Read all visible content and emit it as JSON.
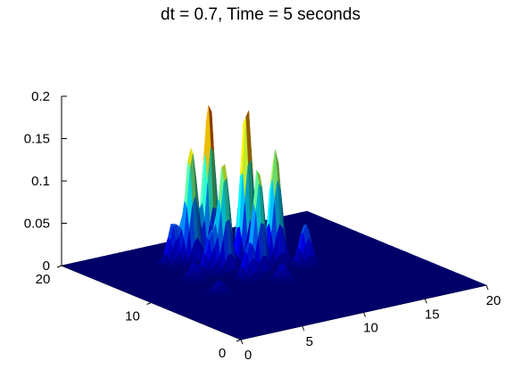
{
  "window": {
    "title": "dt = 0.7, Time = 5 seconds"
  },
  "chart_data": {
    "type": "surface",
    "title": "dt = 0.7, Time = 5 seconds",
    "xlabel": "",
    "ylabel": "",
    "zlabel": "",
    "xlim": [
      0,
      20
    ],
    "ylim": [
      0,
      20
    ],
    "zlim": [
      0,
      0.2
    ],
    "colormap": "jet",
    "grid": false,
    "x_ticks": [
      0,
      5,
      10,
      15,
      20
    ],
    "y_ticks": [
      0,
      10,
      20
    ],
    "z_ticks": [
      0,
      0.05,
      0.1,
      0.15,
      0.2
    ],
    "x_tick_labels": [
      "0",
      "5",
      "10",
      "15",
      "20"
    ],
    "y_tick_labels": [
      "0",
      "10",
      "20"
    ],
    "z_tick_labels": [
      "0",
      "0.05",
      "0.1",
      "0.15",
      "0.2"
    ],
    "peaks": [
      {
        "x": 8.6,
        "y": 15.3,
        "z": 0.19
      },
      {
        "x": 10.4,
        "y": 13.6,
        "z": 0.19
      },
      {
        "x": 7.2,
        "y": 15.4,
        "z": 0.14
      },
      {
        "x": 11.8,
        "y": 12.3,
        "z": 0.135
      },
      {
        "x": 7.9,
        "y": 12.7,
        "z": 0.13
      },
      {
        "x": 9.6,
        "y": 11.2,
        "z": 0.125
      },
      {
        "x": 6.1,
        "y": 15.9,
        "z": 0.05
      },
      {
        "x": 13.0,
        "y": 10.6,
        "z": 0.05
      },
      {
        "x": 6.9,
        "y": 12.9,
        "z": 0.045
      },
      {
        "x": 8.3,
        "y": 10.4,
        "z": 0.045
      },
      {
        "x": 5.3,
        "y": 12.4,
        "z": 0.02
      },
      {
        "x": 9.8,
        "y": 8.8,
        "z": 0.02
      },
      {
        "x": 12.2,
        "y": 15.6,
        "z": 0.02
      },
      {
        "x": 4.8,
        "y": 9.0,
        "z": 0.015
      }
    ]
  }
}
